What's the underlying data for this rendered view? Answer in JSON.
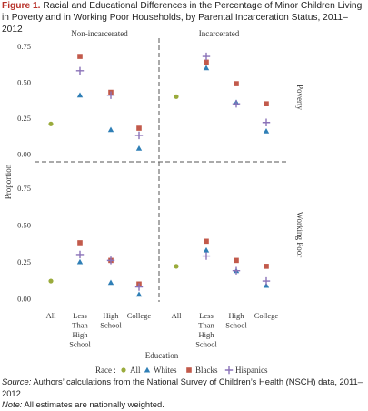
{
  "figure": {
    "label": "Figure 1.",
    "title": "Racial and Educational Differences in the Percentage of Minor Children Living in Poverty and in Working Poor Households, by Parental Incarceration Status, 2011–2012"
  },
  "notes": {
    "source_label": "Source:",
    "source_text": "Authors’ calculations from the National Survey of Children’s Health (NSCH) data, 2011–2012.",
    "note_label": "Note:",
    "note_text": "All estimates are nationally weighted."
  },
  "colors": {
    "All": "#9aab3c",
    "Whites": "#2f7fb6",
    "Blacks": "#c25a4b",
    "Hispanics": "#8a72b8",
    "divider": "#555555",
    "axis_text": "#333333"
  },
  "chart_data": {
    "type": "scatter",
    "xlabel": "Education",
    "ylabel": "Proportion",
    "categories": [
      "All",
      "Less Than High School",
      "High School",
      "College"
    ],
    "category_labels": [
      [
        "All"
      ],
      [
        "Less",
        "Than",
        "High",
        "School"
      ],
      [
        "High",
        "School"
      ],
      [
        "College"
      ]
    ],
    "y_ticks": [
      0.0,
      0.25,
      0.5,
      0.75
    ],
    "y_tick_labels": [
      "0.00",
      "0.25",
      "0.50",
      "0.75"
    ],
    "ylim": [
      0,
      0.82
    ],
    "columns": [
      "Non-incarcerated",
      "Incarcerated"
    ],
    "rows": [
      "Poverty",
      "Working Poor"
    ],
    "legend": {
      "title": "Race :",
      "entries": [
        {
          "name": "All",
          "marker": "circle"
        },
        {
          "name": "Whites",
          "marker": "triangle"
        },
        {
          "name": "Blacks",
          "marker": "square"
        },
        {
          "name": "Hispanics",
          "marker": "plus"
        }
      ],
      "position": "bottom"
    },
    "panels": [
      {
        "row": "Poverty",
        "column": "Non-incarcerated",
        "series": [
          {
            "name": "All",
            "values": [
              0.21,
              null,
              null,
              null
            ]
          },
          {
            "name": "Whites",
            "values": [
              null,
              0.41,
              0.17,
              0.04
            ]
          },
          {
            "name": "Blacks",
            "values": [
              null,
              0.68,
              0.43,
              0.18
            ]
          },
          {
            "name": "Hispanics",
            "values": [
              null,
              0.58,
              0.41,
              0.13
            ]
          }
        ]
      },
      {
        "row": "Poverty",
        "column": "Incarcerated",
        "series": [
          {
            "name": "All",
            "values": [
              0.4,
              null,
              null,
              null
            ]
          },
          {
            "name": "Whites",
            "values": [
              null,
              0.6,
              0.36,
              0.16
            ]
          },
          {
            "name": "Blacks",
            "values": [
              null,
              0.64,
              0.49,
              0.35
            ]
          },
          {
            "name": "Hispanics",
            "values": [
              null,
              0.68,
              0.35,
              0.22
            ]
          }
        ]
      },
      {
        "row": "Working Poor",
        "column": "Non-incarcerated",
        "series": [
          {
            "name": "All",
            "values": [
              0.12,
              null,
              null,
              null
            ]
          },
          {
            "name": "Whites",
            "values": [
              null,
              0.25,
              0.11,
              0.03
            ]
          },
          {
            "name": "Blacks",
            "values": [
              null,
              0.38,
              0.26,
              0.1
            ]
          },
          {
            "name": "Hispanics",
            "values": [
              null,
              0.3,
              0.26,
              0.08
            ]
          }
        ]
      },
      {
        "row": "Working Poor",
        "column": "Incarcerated",
        "series": [
          {
            "name": "All",
            "values": [
              0.22,
              null,
              null,
              null
            ]
          },
          {
            "name": "Whites",
            "values": [
              null,
              0.33,
              0.19,
              0.09
            ]
          },
          {
            "name": "Blacks",
            "values": [
              null,
              0.39,
              0.26,
              0.22
            ]
          },
          {
            "name": "Hispanics",
            "values": [
              null,
              0.29,
              0.19,
              0.12
            ]
          }
        ]
      }
    ],
    "grid": false
  }
}
